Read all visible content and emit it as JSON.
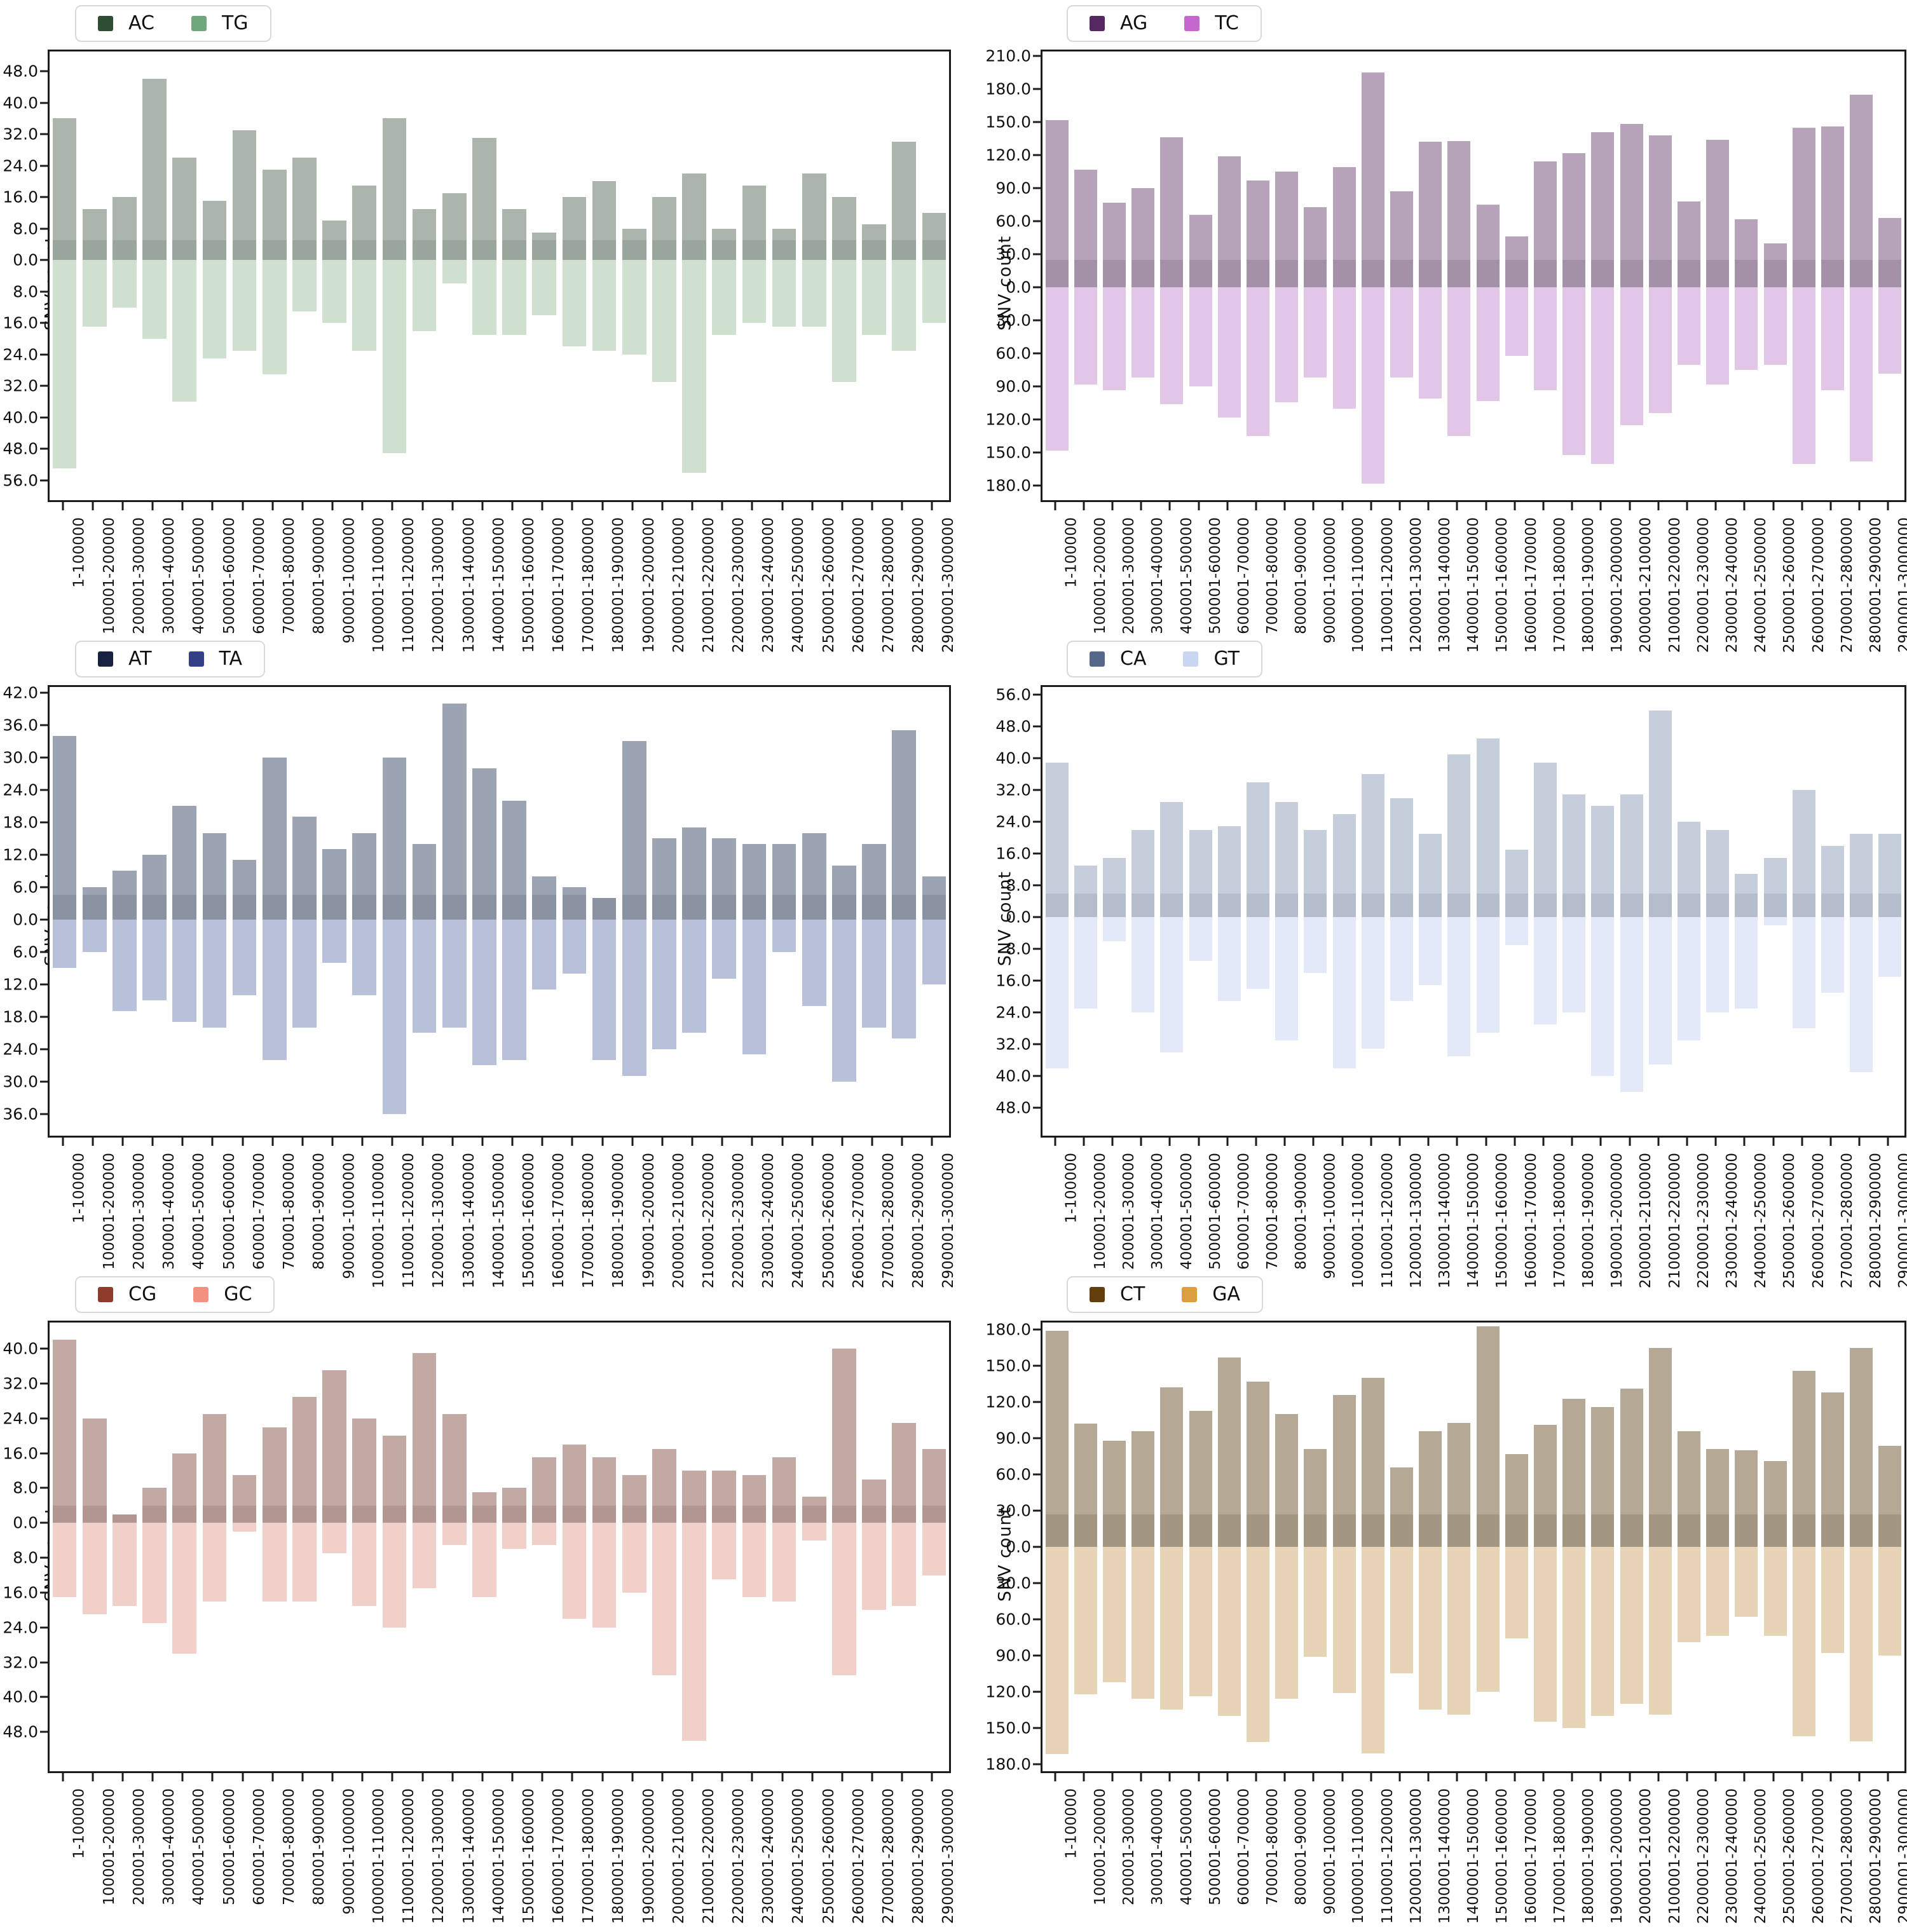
{
  "figure": {
    "ylabel": "SNV count"
  },
  "chart_data": {
    "type": "mirrored_bar",
    "ylabel": "SNV count",
    "grid": "off",
    "legend_position": "top-left",
    "categories": [
      "1-100000",
      "100001-200000",
      "200001-300000",
      "300001-400000",
      "400001-500000",
      "500001-600000",
      "600001-700000",
      "700001-800000",
      "800001-900000",
      "900001-1000000",
      "1000001-1100000",
      "1100001-1200000",
      "1200001-1300000",
      "1300001-1400000",
      "1400001-1500000",
      "1500001-1600000",
      "1600001-1700000",
      "1700001-1800000",
      "1800001-1900000",
      "1900001-2000000",
      "2000001-2100000",
      "2100001-2200000",
      "2200001-2300000",
      "2300001-2400000",
      "2400001-2500000",
      "2500001-2600000",
      "2600001-2700000",
      "2700001-2800000",
      "2800001-2900000",
      "2900001-3000000"
    ],
    "charts": [
      {
        "pair": "ac-tg",
        "series": [
          {
            "label": "AC",
            "direction": "up",
            "legend_color": "#2e4d35",
            "values": [
              36,
              13,
              16,
              46,
              26,
              15,
              33,
              23,
              26,
              10,
              19,
              36,
              13,
              17,
              31,
              13,
              7,
              16,
              20,
              8,
              16,
              22,
              8,
              19,
              8,
              22,
              16,
              9,
              30,
              12
            ]
          },
          {
            "label": "TG",
            "direction": "down",
            "legend_color": "#6fa87a",
            "values": [
              53,
              17,
              12,
              20,
              36,
              25,
              23,
              29,
              13,
              16,
              23,
              49,
              18,
              6,
              19,
              19,
              14,
              22,
              23,
              24,
              31,
              54,
              19,
              16,
              17,
              17,
              31,
              19,
              23,
              16
            ]
          }
        ],
        "axis": {
          "up_ticks": [
            48,
            40,
            32,
            24,
            16,
            8,
            0
          ],
          "down_ticks": [
            8,
            16,
            24,
            32,
            40,
            48,
            56
          ],
          "up_lim": 53,
          "down_lim": 61,
          "band": 5
        },
        "fills": {
          "up": "#abb5ac",
          "band": "#9aa69b",
          "down": "#cfdfd0"
        }
      },
      {
        "pair": "ag-tc",
        "series": [
          {
            "label": "AG",
            "direction": "up",
            "legend_color": "#542961",
            "values": [
              152,
              107,
              77,
              90,
              136,
              66,
              119,
              97,
              105,
              73,
              109,
              195,
              87,
              132,
              133,
              75,
              46,
              114,
              122,
              141,
              148,
              138,
              78,
              134,
              62,
              40,
              145,
              146,
              175,
              63
            ]
          },
          {
            "label": "TC",
            "direction": "down",
            "legend_color": "#c667cd",
            "values": [
              148,
              88,
              93,
              82,
              106,
              90,
              118,
              135,
              104,
              82,
              110,
              178,
              82,
              101,
              135,
              103,
              62,
              93,
              152,
              160,
              125,
              114,
              70,
              88,
              75,
              70,
              160,
              93,
              158,
              78
            ]
          }
        ],
        "axis": {
          "up_ticks": [
            210,
            180,
            150,
            120,
            90,
            60,
            30,
            0
          ],
          "down_ticks": [
            30,
            60,
            90,
            120,
            150,
            180
          ],
          "up_lim": 214,
          "down_lim": 193,
          "band": 25
        },
        "fills": {
          "up": "#b6a3ba",
          "band": "#a391a8",
          "down": "#e2c6e8"
        }
      },
      {
        "pair": "at-ta",
        "series": [
          {
            "label": "AT",
            "direction": "up",
            "legend_color": "#17213f",
            "values": [
              34,
              6,
              9,
              12,
              21,
              16,
              11,
              30,
              19,
              13,
              16,
              30,
              14,
              40,
              28,
              22,
              8,
              6,
              4,
              33,
              15,
              17,
              15,
              14,
              14,
              16,
              10,
              14,
              35,
              8
            ]
          },
          {
            "label": "TA",
            "direction": "down",
            "legend_color": "#333f87",
            "values": [
              9,
              6,
              17,
              15,
              19,
              20,
              14,
              26,
              20,
              8,
              14,
              36,
              21,
              20,
              27,
              26,
              13,
              10,
              26,
              29,
              24,
              21,
              11,
              25,
              6,
              16,
              30,
              20,
              22,
              12
            ]
          }
        ],
        "axis": {
          "up_ticks": [
            42,
            36,
            30,
            24,
            18,
            12,
            6,
            0
          ],
          "down_ticks": [
            6,
            12,
            18,
            24,
            30,
            36
          ],
          "up_lim": 43,
          "down_lim": 40,
          "band": 4.5
        },
        "fills": {
          "up": "#9ca4b4",
          "band": "#8b93a3",
          "down": "#b9c1da"
        }
      },
      {
        "pair": "ca-gt",
        "series": [
          {
            "label": "CA",
            "direction": "up",
            "legend_color": "#56678a",
            "values": [
              39,
              13,
              15,
              22,
              29,
              22,
              23,
              34,
              29,
              22,
              26,
              36,
              30,
              21,
              41,
              45,
              17,
              39,
              31,
              28,
              31,
              52,
              24,
              22,
              11,
              15,
              32,
              18,
              21,
              21
            ]
          },
          {
            "label": "GT",
            "direction": "down",
            "legend_color": "#c9d6f2",
            "values": [
              38,
              23,
              6,
              24,
              34,
              11,
              21,
              18,
              31,
              14,
              38,
              33,
              21,
              17,
              35,
              29,
              7,
              27,
              24,
              40,
              44,
              37,
              31,
              24,
              23,
              2,
              28,
              19,
              39,
              15
            ]
          }
        ],
        "axis": {
          "up_ticks": [
            56,
            48,
            40,
            32,
            24,
            16,
            8,
            0
          ],
          "down_ticks": [
            8,
            16,
            24,
            32,
            40,
            48
          ],
          "up_lim": 58,
          "down_lim": 55,
          "band": 6
        },
        "fills": {
          "up": "#c7cedb",
          "band": "#b5bccb",
          "down": "#e4e9f9"
        }
      },
      {
        "pair": "cg-gc",
        "series": [
          {
            "label": "CG",
            "direction": "up",
            "legend_color": "#8d3c2c",
            "values": [
              42,
              24,
              2,
              8,
              16,
              25,
              11,
              22,
              29,
              35,
              24,
              20,
              39,
              25,
              7,
              8,
              15,
              18,
              15,
              11,
              17,
              12,
              12,
              11,
              15,
              6,
              40,
              10,
              23,
              17
            ]
          },
          {
            "label": "GC",
            "direction": "down",
            "legend_color": "#f2917f",
            "values": [
              17,
              21,
              19,
              23,
              30,
              18,
              2,
              18,
              18,
              7,
              19,
              24,
              15,
              5,
              17,
              6,
              5,
              22,
              24,
              16,
              35,
              50,
              13,
              17,
              18,
              4,
              35,
              20,
              19,
              12
            ]
          }
        ],
        "axis": {
          "up_ticks": [
            40,
            32,
            24,
            16,
            8,
            0
          ],
          "down_ticks": [
            8,
            16,
            24,
            32,
            40,
            48
          ],
          "up_lim": 46,
          "down_lim": 57,
          "band": 4
        },
        "fills": {
          "up": "#c3a9a4",
          "band": "#b29692",
          "down": "#f2d0ca"
        }
      },
      {
        "pair": "ct-ga",
        "series": [
          {
            "label": "CT",
            "direction": "up",
            "legend_color": "#633d0c",
            "values": [
              179,
              102,
              88,
              96,
              132,
              113,
              157,
              137,
              110,
              81,
              126,
              140,
              66,
              96,
              103,
              183,
              77,
              101,
              123,
              116,
              131,
              165,
              96,
              81,
              80,
              71,
              146,
              128,
              165,
              84
            ]
          },
          {
            "label": "GA",
            "direction": "down",
            "legend_color": "#dc9f3f",
            "values": [
              172,
              122,
              112,
              126,
              135,
              124,
              140,
              162,
              126,
              91,
              121,
              171,
              105,
              135,
              139,
              120,
              76,
              145,
              150,
              140,
              130,
              139,
              79,
              74,
              58,
              74,
              157,
              88,
              161,
              90
            ]
          }
        ],
        "axis": {
          "up_ticks": [
            180,
            150,
            120,
            90,
            60,
            30,
            0
          ],
          "down_ticks": [
            30,
            60,
            90,
            120,
            150,
            180
          ],
          "up_lim": 186,
          "down_lim": 186,
          "band": 27
        },
        "fills": {
          "up": "#b5a995",
          "band": "#a49781",
          "down": "#e7d4b6"
        }
      }
    ]
  }
}
